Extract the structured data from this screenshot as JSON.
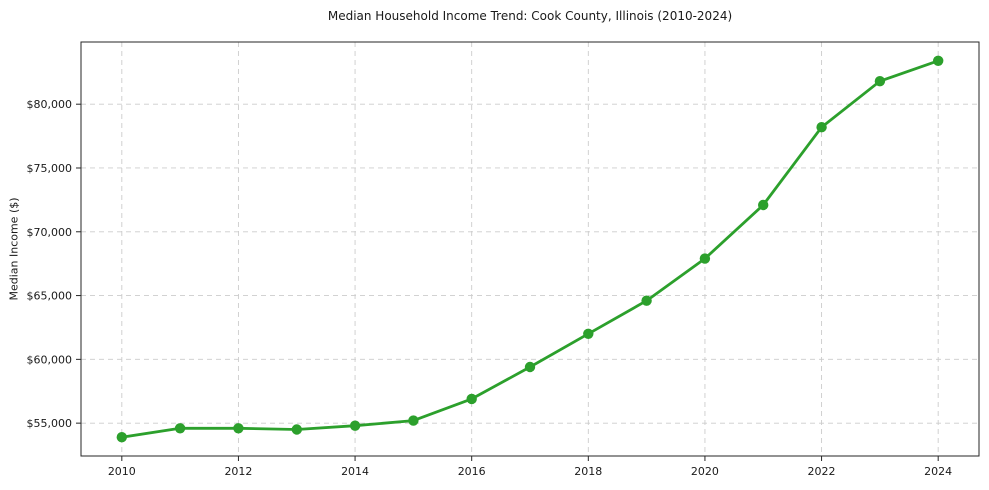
{
  "page": {
    "background": "#ffffff"
  },
  "chart_data": {
    "type": "line",
    "title": "Median Household Income Trend: Cook County, Illinois (2010-2024)",
    "xlabel": "",
    "ylabel": "Median Income ($)",
    "x": [
      2010,
      2011,
      2012,
      2013,
      2014,
      2015,
      2016,
      2017,
      2018,
      2019,
      2020,
      2021,
      2022,
      2023,
      2024
    ],
    "series": [
      {
        "name": "Median Household Income",
        "values": [
          53900,
          54600,
          54600,
          54500,
          54800,
          55200,
          56900,
          59400,
          62000,
          64600,
          67900,
          72100,
          78200,
          81800,
          83400
        ]
      }
    ],
    "x_ticks": [
      2010,
      2012,
      2014,
      2016,
      2018,
      2020,
      2022,
      2024
    ],
    "x_tick_labels": [
      "2010",
      "2012",
      "2014",
      "2016",
      "2018",
      "2020",
      "2022",
      "2024"
    ],
    "y_ticks": [
      55000,
      60000,
      65000,
      70000,
      75000,
      80000
    ],
    "y_tick_labels": [
      "$55,000",
      "$60,000",
      "$65,000",
      "$70,000",
      "$75,000",
      "$80,000"
    ],
    "xlim": [
      2009.3,
      2024.7
    ],
    "ylim": [
      52425,
      84875
    ],
    "grid": true,
    "legend_position": "none",
    "line_color": "#2ca02c",
    "marker": "circle",
    "marker_color": "#2ca02c",
    "grid_color": "#cccccc",
    "axis_color": "#262626"
  }
}
